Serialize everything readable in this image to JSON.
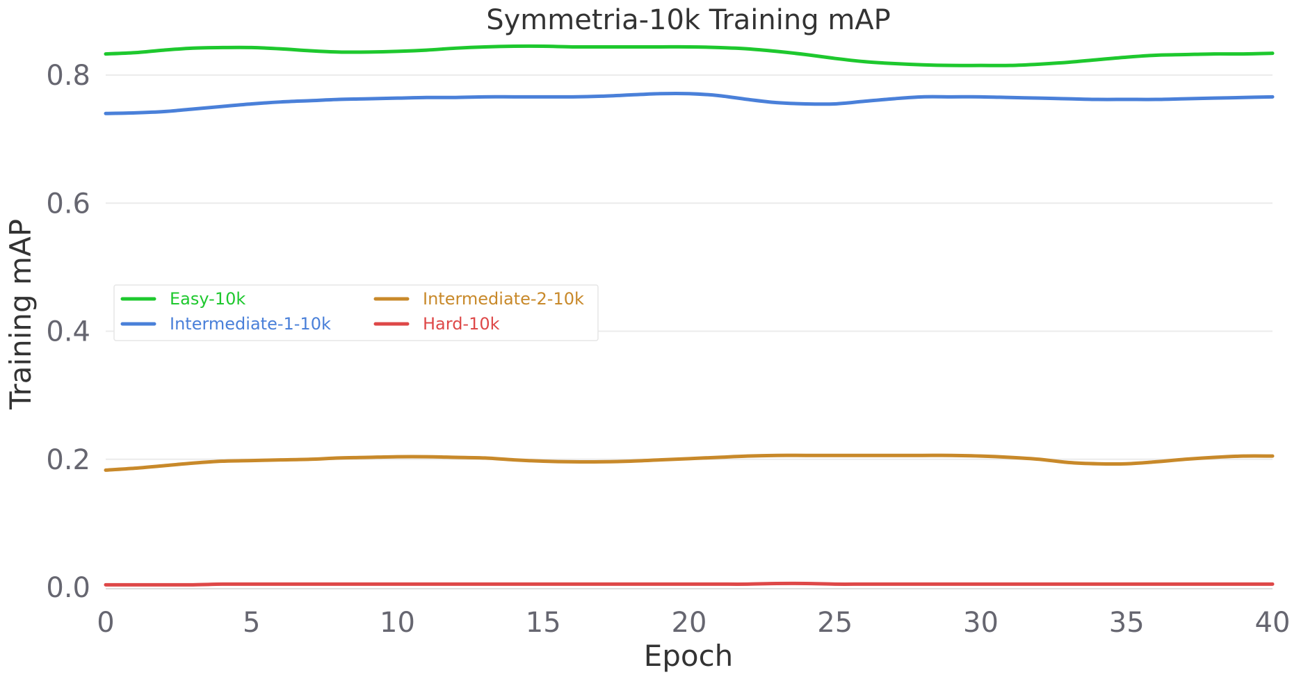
{
  "chart_data": {
    "type": "line",
    "title": "Symmetria-10k Training mAP",
    "xlabel": "Epoch",
    "ylabel": "Training mAP",
    "xlim": [
      0,
      40
    ],
    "ylim": [
      0,
      0.85
    ],
    "xticks": [
      "0",
      "5",
      "10",
      "15",
      "20",
      "25",
      "30",
      "35",
      "40"
    ],
    "yticks": [
      "0.0",
      "0.2",
      "0.4",
      "0.6",
      "0.8"
    ],
    "grid": "horizontal",
    "legend_position": "center-left",
    "legend_columns": 2,
    "x": [
      0,
      1,
      2,
      3,
      4,
      5,
      6,
      7,
      8,
      9,
      10,
      11,
      12,
      13,
      14,
      15,
      16,
      17,
      18,
      19,
      20,
      21,
      22,
      23,
      24,
      25,
      26,
      27,
      28,
      29,
      30,
      31,
      32,
      33,
      34,
      35,
      36,
      37,
      38,
      39,
      40
    ],
    "series": [
      {
        "name": "Easy-10k",
        "color": "#1ec82e",
        "values": [
          0.833,
          0.835,
          0.839,
          0.842,
          0.843,
          0.843,
          0.841,
          0.838,
          0.836,
          0.836,
          0.837,
          0.839,
          0.842,
          0.844,
          0.845,
          0.845,
          0.844,
          0.844,
          0.844,
          0.844,
          0.844,
          0.843,
          0.841,
          0.837,
          0.832,
          0.826,
          0.821,
          0.818,
          0.816,
          0.815,
          0.815,
          0.815,
          0.817,
          0.82,
          0.824,
          0.828,
          0.831,
          0.832,
          0.833,
          0.833,
          0.834
        ]
      },
      {
        "name": "Intermediate-1-10k",
        "color": "#4a80d9",
        "values": [
          0.74,
          0.741,
          0.743,
          0.747,
          0.751,
          0.755,
          0.758,
          0.76,
          0.762,
          0.763,
          0.764,
          0.765,
          0.765,
          0.766,
          0.766,
          0.766,
          0.766,
          0.767,
          0.769,
          0.771,
          0.771,
          0.768,
          0.762,
          0.757,
          0.755,
          0.755,
          0.759,
          0.763,
          0.766,
          0.766,
          0.766,
          0.765,
          0.764,
          0.763,
          0.762,
          0.762,
          0.762,
          0.763,
          0.764,
          0.765,
          0.766
        ]
      },
      {
        "name": "Intermediate-2-10k",
        "color": "#c8892a",
        "values": [
          0.183,
          0.186,
          0.19,
          0.194,
          0.197,
          0.198,
          0.199,
          0.2,
          0.202,
          0.203,
          0.204,
          0.204,
          0.203,
          0.202,
          0.199,
          0.197,
          0.196,
          0.196,
          0.197,
          0.199,
          0.201,
          0.203,
          0.205,
          0.206,
          0.206,
          0.206,
          0.206,
          0.206,
          0.206,
          0.206,
          0.205,
          0.203,
          0.2,
          0.195,
          0.193,
          0.193,
          0.196,
          0.2,
          0.203,
          0.205,
          0.205
        ]
      },
      {
        "name": "Hard-10k",
        "color": "#de4848",
        "values": [
          0.004,
          0.004,
          0.004,
          0.004,
          0.005,
          0.005,
          0.005,
          0.005,
          0.005,
          0.005,
          0.005,
          0.005,
          0.005,
          0.005,
          0.005,
          0.005,
          0.005,
          0.005,
          0.005,
          0.005,
          0.005,
          0.005,
          0.005,
          0.006,
          0.006,
          0.005,
          0.005,
          0.005,
          0.005,
          0.005,
          0.005,
          0.005,
          0.005,
          0.005,
          0.005,
          0.005,
          0.005,
          0.005,
          0.005,
          0.005,
          0.005
        ]
      }
    ]
  },
  "colors": {
    "title": "#333333",
    "tick": "#666670",
    "grid": "#ebebeb",
    "axis": "#dddddd"
  }
}
